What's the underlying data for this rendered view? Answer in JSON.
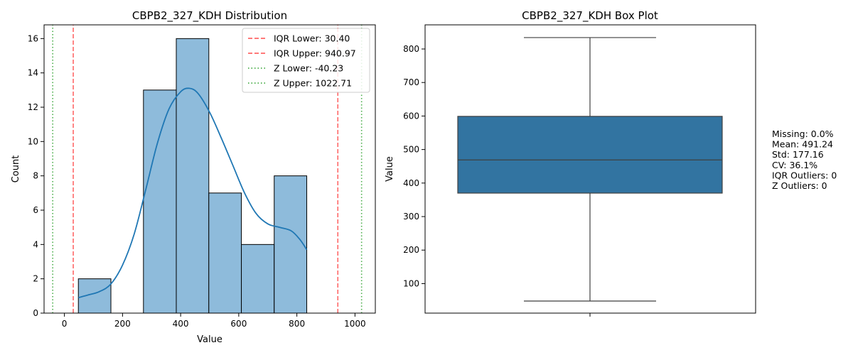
{
  "chart_data": [
    {
      "type": "histogram",
      "title": "CBPB2_327_KDH Distribution",
      "xlabel": "Value",
      "ylabel": "Count",
      "xlim": [
        -70,
        1070
      ],
      "ylim": [
        0,
        16.8
      ],
      "xticks": [
        0,
        200,
        400,
        600,
        800,
        1000
      ],
      "yticks": [
        0,
        2,
        4,
        6,
        8,
        10,
        12,
        14,
        16
      ],
      "bar_color": "#8ebbdb",
      "kde_color": "#1f77b4",
      "bins": [
        {
          "x0": 48,
          "x1": 160,
          "count": 2
        },
        {
          "x0": 160,
          "x1": 272,
          "count": 0
        },
        {
          "x0": 272,
          "x1": 385,
          "count": 13
        },
        {
          "x0": 385,
          "x1": 497,
          "count": 16
        },
        {
          "x0": 497,
          "x1": 609,
          "count": 7
        },
        {
          "x0": 609,
          "x1": 722,
          "count": 4
        },
        {
          "x0": 722,
          "x1": 834,
          "count": 8
        }
      ],
      "kde": [
        [
          48,
          0.9
        ],
        [
          80,
          1.05
        ],
        [
          120,
          1.25
        ],
        [
          160,
          1.7
        ],
        [
          200,
          2.8
        ],
        [
          240,
          4.6
        ],
        [
          280,
          7.2
        ],
        [
          320,
          9.9
        ],
        [
          360,
          11.9
        ],
        [
          400,
          12.9
        ],
        [
          430,
          13.1
        ],
        [
          460,
          12.8
        ],
        [
          500,
          11.7
        ],
        [
          540,
          10.2
        ],
        [
          580,
          8.6
        ],
        [
          620,
          7.0
        ],
        [
          660,
          5.8
        ],
        [
          700,
          5.2
        ],
        [
          740,
          5.0
        ],
        [
          780,
          4.8
        ],
        [
          810,
          4.3
        ],
        [
          834,
          3.7
        ]
      ],
      "vlines": [
        {
          "label": "IQR Lower: 30.40",
          "x": 30.4,
          "style": "dashed",
          "color": "#ff4d4d"
        },
        {
          "label": "IQR Upper: 940.97",
          "x": 940.97,
          "style": "dashed",
          "color": "#ff4d4d"
        },
        {
          "label": "Z Lower: -40.23",
          "x": -40.23,
          "style": "dotted",
          "color": "#2ca02c"
        },
        {
          "label": "Z Upper: 1022.71",
          "x": 1022.71,
          "style": "dotted",
          "color": "#2ca02c"
        }
      ],
      "legend_position": "top-right"
    },
    {
      "type": "box",
      "title": "CBPB2_327_KDH Box Plot",
      "ylabel": "Value",
      "ylim": [
        12,
        872
      ],
      "yticks": [
        100,
        200,
        300,
        400,
        500,
        600,
        700,
        800
      ],
      "box_color": "#3274a1",
      "min": 48,
      "q1": 370,
      "median": 469,
      "q3": 599,
      "max": 834
    }
  ],
  "stats": [
    "Missing: 0.0%",
    "Mean: 491.24",
    "Std: 177.16",
    "CV: 36.1%",
    "IQR Outliers: 0",
    "Z Outliers: 0"
  ]
}
